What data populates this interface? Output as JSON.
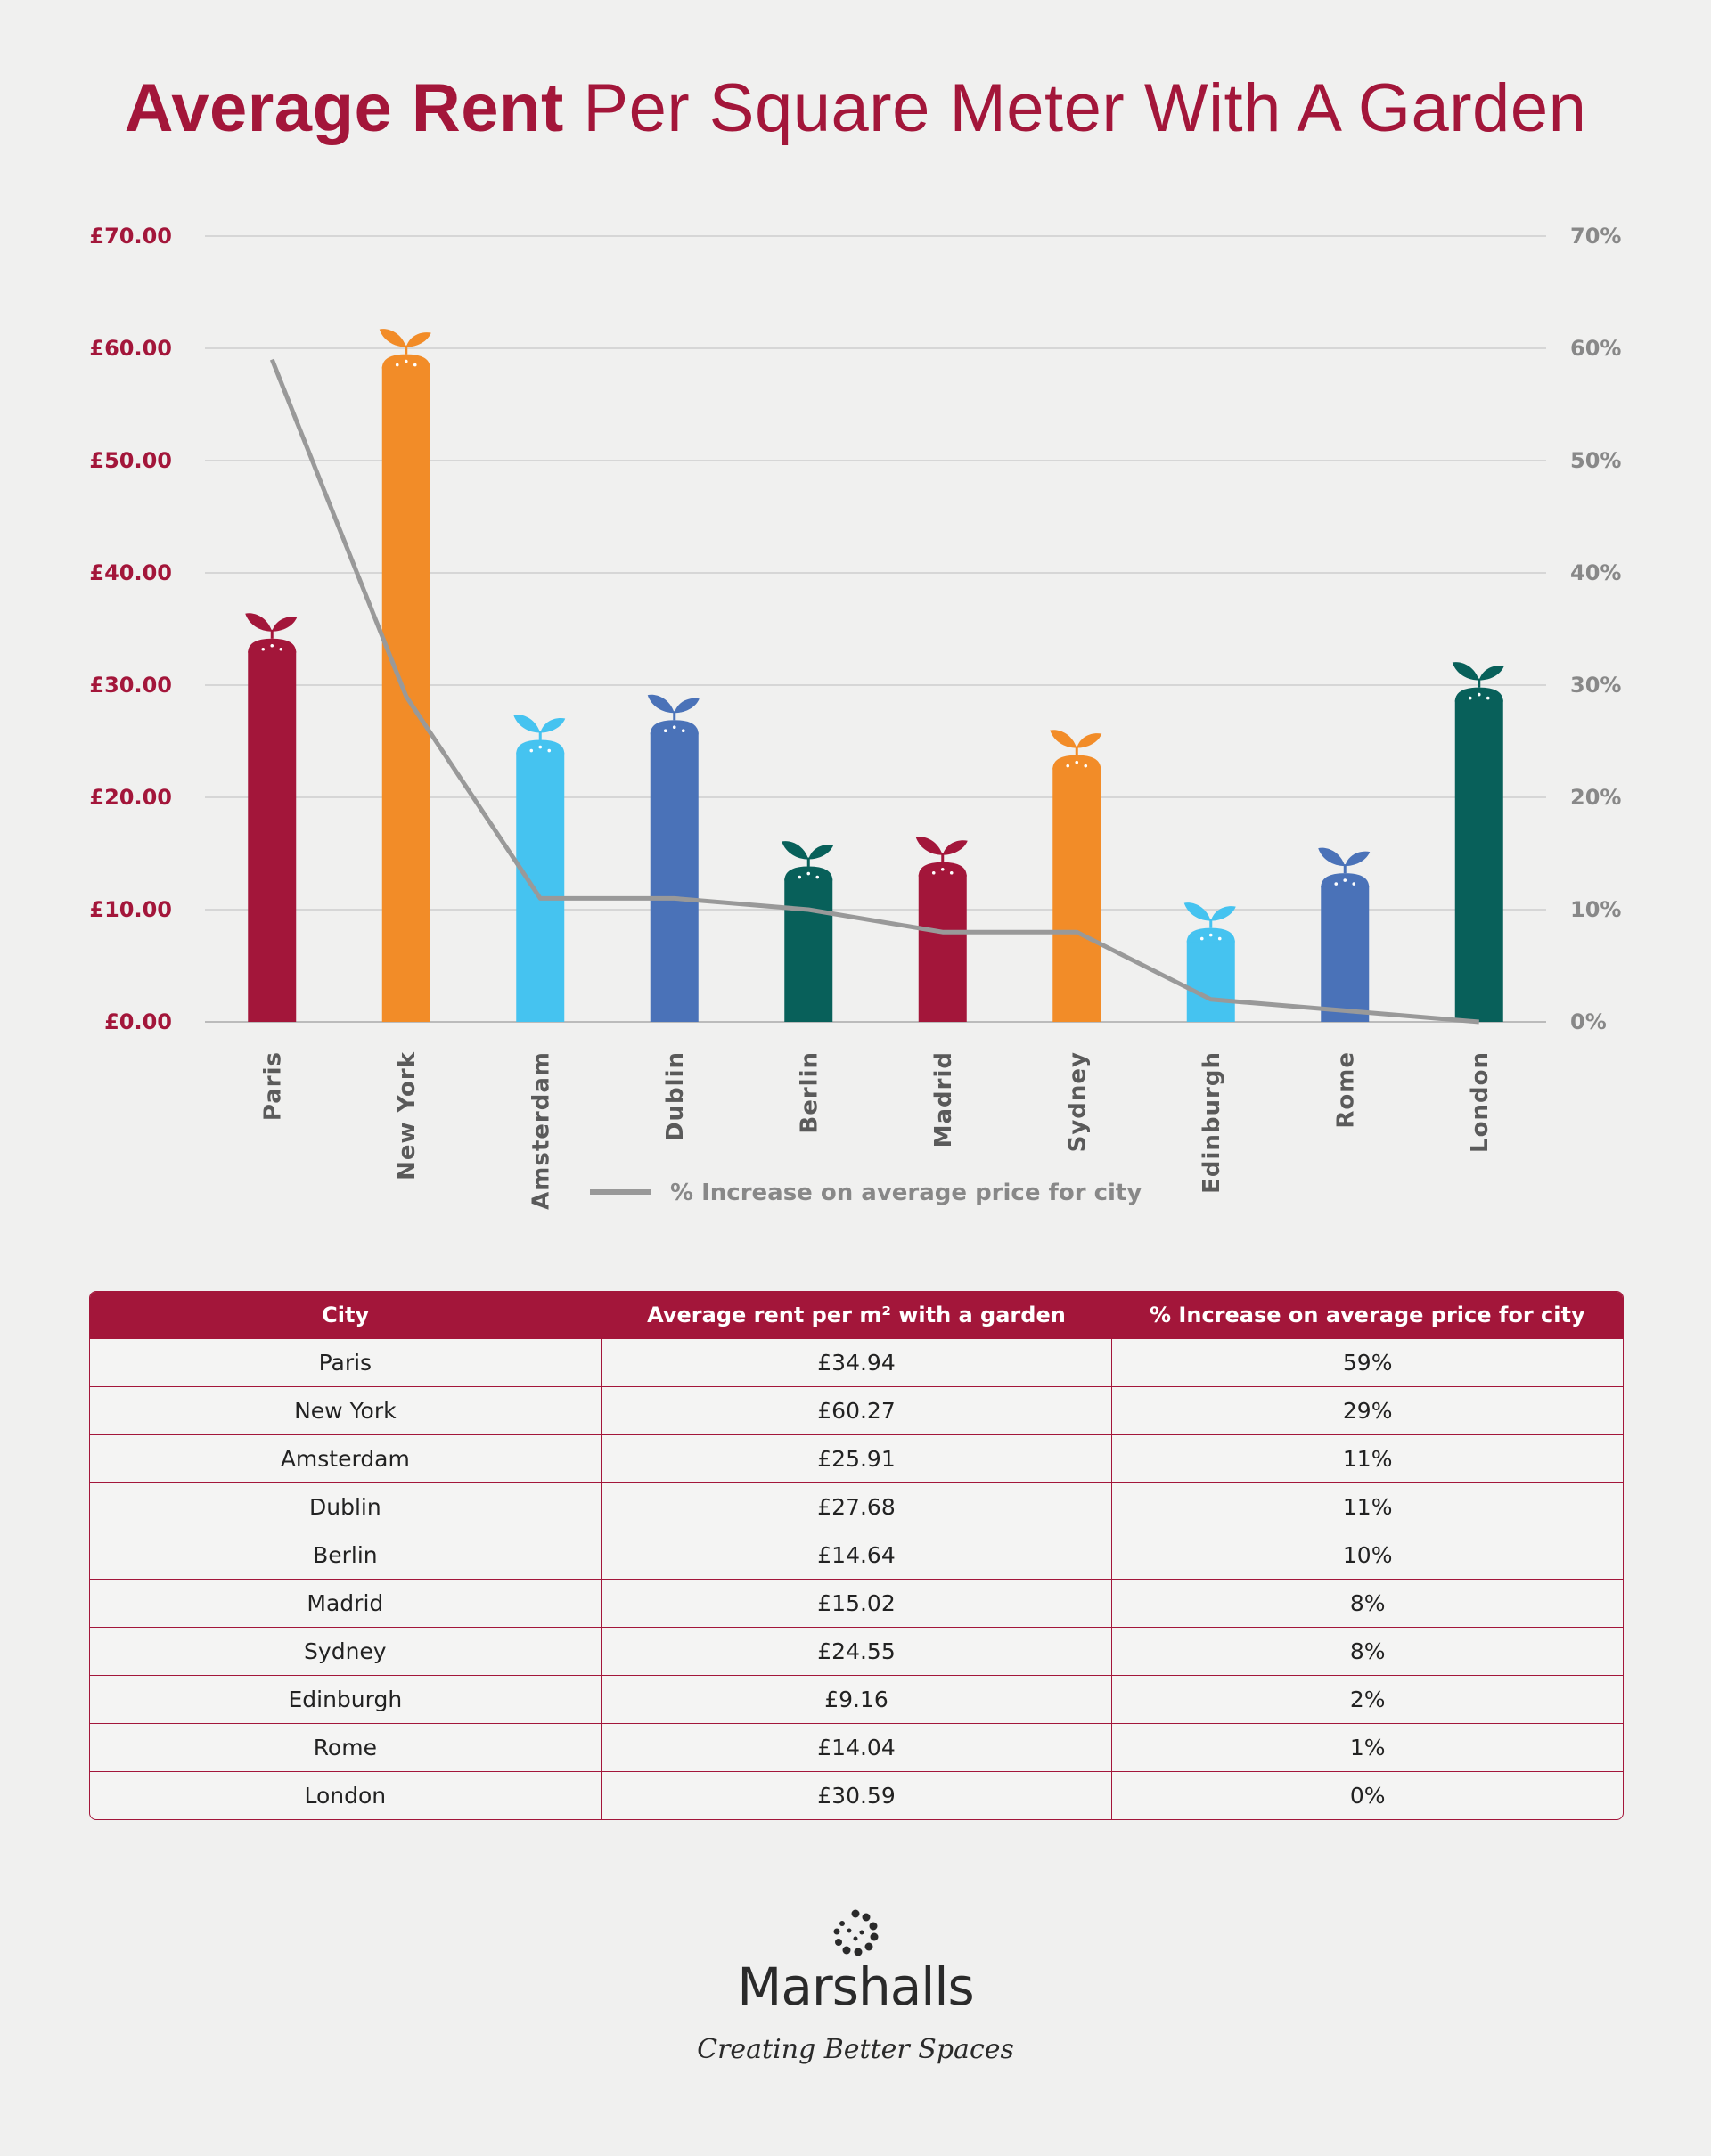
{
  "title": {
    "bold": "Average Rent",
    "rest": " Per Square Meter With A Garden"
  },
  "chart_data": {
    "type": "bar",
    "categories": [
      "Paris",
      "New York",
      "Amsterdam",
      "Dublin",
      "Berlin",
      "Madrid",
      "Sydney",
      "Edinburgh",
      "Rome",
      "London"
    ],
    "series": [
      {
        "values": [
          34.94,
          60.27,
          25.91,
          27.68,
          14.64,
          15.02,
          24.55,
          9.16,
          14.04,
          30.59
        ],
        "axis": "left",
        "kind": "bar"
      },
      {
        "name": "% Increase on average price for city",
        "values": [
          59,
          29,
          11,
          11,
          10,
          8,
          8,
          2,
          1,
          0
        ],
        "axis": "right",
        "kind": "line",
        "color": "#999999"
      }
    ],
    "bar_colors": [
      "#a3163a",
      "#f28c28",
      "#45c3f0",
      "#4a72b8",
      "#08605a",
      "#a3163a",
      "#f28c28",
      "#45c3f0",
      "#4a72b8",
      "#08605a"
    ],
    "left_axis": {
      "ylim": [
        0,
        70
      ],
      "ticks": [
        "£0.00",
        "£10.00",
        "£20.00",
        "£30.00",
        "£40.00",
        "£50.00",
        "£60.00",
        "£70.00"
      ]
    },
    "right_axis": {
      "ylim": [
        0,
        70
      ],
      "ticks": [
        "0%",
        "10%",
        "20%",
        "30%",
        "40%",
        "50%",
        "60%",
        "70%"
      ]
    },
    "grid": true,
    "legend": {
      "position": "bottom",
      "label": "% Increase on average price for city"
    }
  },
  "table": {
    "headers": [
      "City",
      "Average rent per m² with a garden",
      "% Increase on average price for city"
    ],
    "rows": [
      [
        "Paris",
        "£34.94",
        "59%"
      ],
      [
        "New York",
        "£60.27",
        "29%"
      ],
      [
        "Amsterdam",
        "£25.91",
        "11%"
      ],
      [
        "Dublin",
        "£27.68",
        "11%"
      ],
      [
        "Berlin",
        "£14.64",
        "10%"
      ],
      [
        "Madrid",
        "£15.02",
        "8%"
      ],
      [
        "Sydney",
        "£24.55",
        "8%"
      ],
      [
        "Edinburgh",
        "£9.16",
        "2%"
      ],
      [
        "Rome",
        "£14.04",
        "1%"
      ],
      [
        "London",
        "£30.59",
        "0%"
      ]
    ]
  },
  "footer": {
    "brand": "Marshalls",
    "tagline": "Creating Better Spaces"
  }
}
